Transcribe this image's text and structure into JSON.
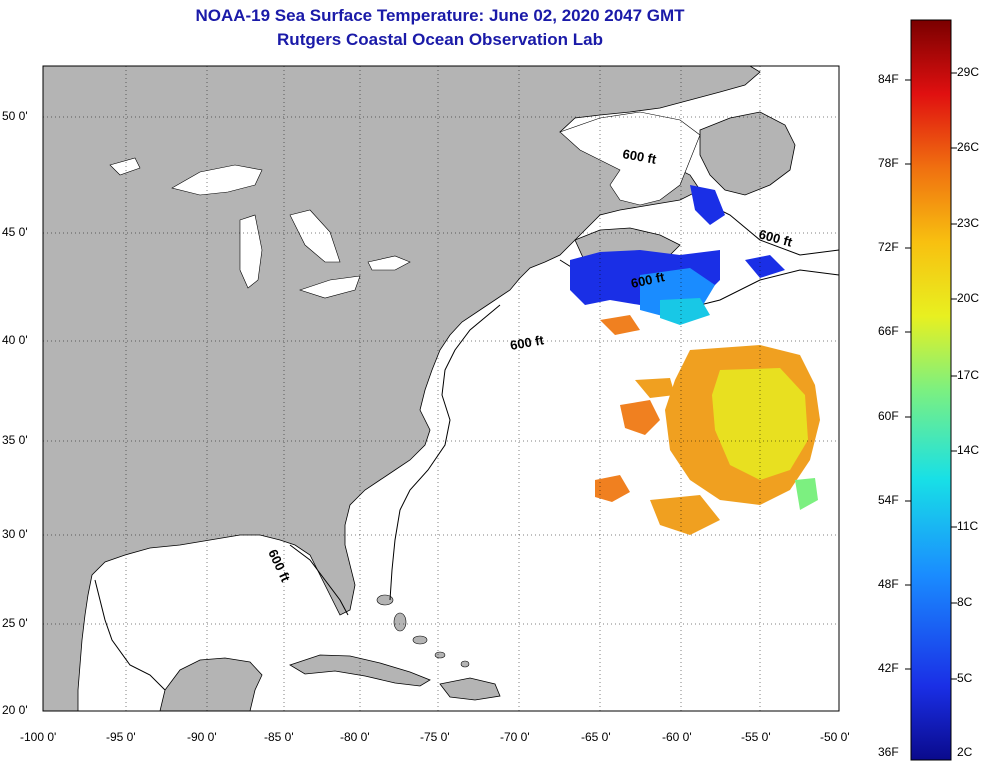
{
  "header": {
    "title": "NOAA-19 Sea Surface Temperature:  June 02, 2020 2047 GMT",
    "subtitle": "Rutgers Coastal Ocean Observation Lab"
  },
  "map": {
    "lon_labels": [
      "-100 0'",
      "-95 0'",
      "-90 0'",
      "-85 0'",
      "-80 0'",
      "-75 0'",
      "-70 0'",
      "-65 0'",
      "-60 0'",
      "-55 0'",
      "-50 0'"
    ],
    "lat_labels": [
      "50 0'",
      "45 0'",
      "40 0'",
      "35 0'",
      "30 0'",
      "25 0'",
      "20 0'"
    ],
    "contour_labels": [
      "600 ft",
      "600 ft",
      "600 ft",
      "600 ft",
      "600 ft"
    ],
    "land_color": "#b4b4b4",
    "water_color": "#ffffff"
  },
  "colorbar": {
    "fahrenheit": [
      "84F",
      "78F",
      "72F",
      "66F",
      "60F",
      "54F",
      "48F",
      "42F",
      "36F"
    ],
    "celsius": [
      "29C",
      "26C",
      "23C",
      "20C",
      "17C",
      "14C",
      "11C",
      "8C",
      "5C",
      "2C"
    ]
  }
}
